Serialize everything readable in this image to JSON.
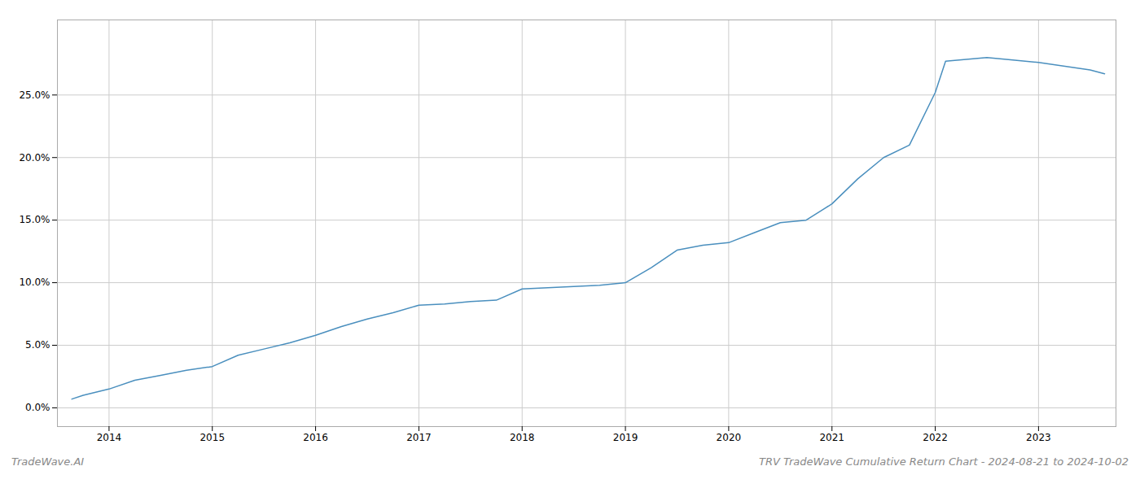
{
  "chart_data": {
    "type": "line",
    "title": "TRV TradeWave Cumulative Return Chart - 2024-08-21 to 2024-10-02",
    "annotations": [
      "TradeWave.AI"
    ],
    "color": "#4a8fbe",
    "grid": true,
    "x": [
      2013.64,
      2013.75,
      2014.0,
      2014.25,
      2014.5,
      2014.75,
      2015.0,
      2015.25,
      2015.5,
      2015.75,
      2016.0,
      2016.25,
      2016.5,
      2016.75,
      2017.0,
      2017.25,
      2017.5,
      2017.75,
      2018.0,
      2018.25,
      2018.5,
      2018.75,
      2019.0,
      2019.25,
      2019.5,
      2019.75,
      2020.0,
      2020.25,
      2020.5,
      2020.75,
      2021.0,
      2021.25,
      2021.5,
      2021.75,
      2022.0,
      2022.1,
      2022.5,
      2022.75,
      2023.0,
      2023.5,
      2023.64
    ],
    "values": [
      0.007,
      0.01,
      0.015,
      0.022,
      0.026,
      0.03,
      0.033,
      0.042,
      0.047,
      0.052,
      0.058,
      0.065,
      0.071,
      0.076,
      0.082,
      0.083,
      0.085,
      0.086,
      0.095,
      0.096,
      0.097,
      0.098,
      0.1,
      0.112,
      0.126,
      0.13,
      0.132,
      0.14,
      0.148,
      0.15,
      0.163,
      0.183,
      0.2,
      0.21,
      0.252,
      0.277,
      0.28,
      0.278,
      0.276,
      0.27,
      0.267
    ],
    "xlim": [
      2013.5,
      2023.75
    ],
    "xticks": [
      2014,
      2015,
      2016,
      2017,
      2018,
      2019,
      2020,
      2021,
      2022,
      2023
    ],
    "ylim": [
      -0.015,
      0.31
    ],
    "yticks": [
      {
        "value": 0.0,
        "label": "0.0%"
      },
      {
        "value": 0.05,
        "label": "5.0%"
      },
      {
        "value": 0.1,
        "label": "10.0%"
      },
      {
        "value": 0.15,
        "label": "15.0%"
      },
      {
        "value": 0.2,
        "label": "20.0%"
      },
      {
        "value": 0.25,
        "label": "25.0%"
      }
    ]
  }
}
